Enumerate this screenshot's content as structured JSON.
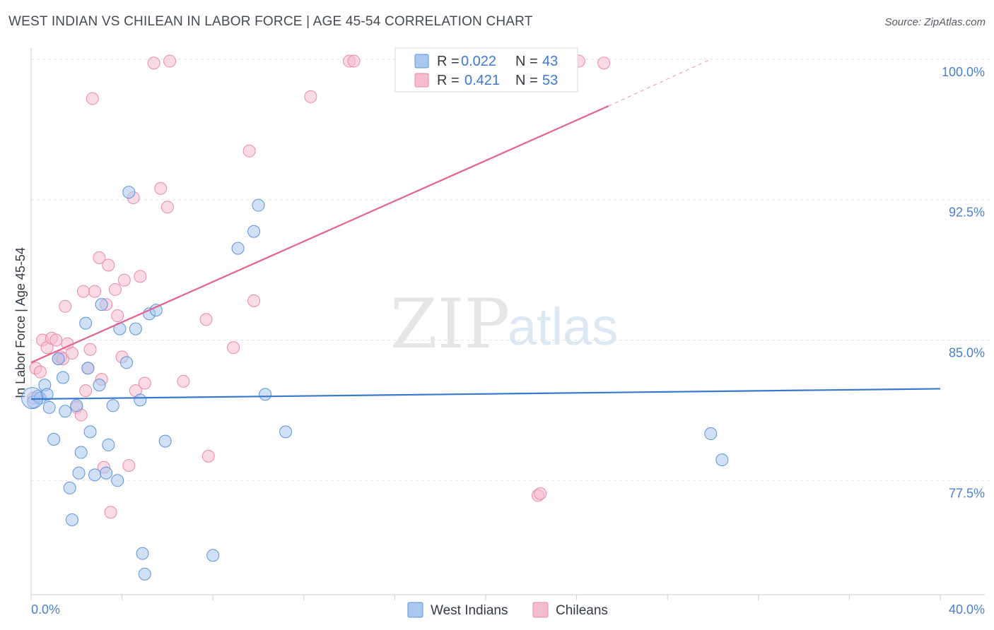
{
  "title": "WEST INDIAN VS CHILEAN IN LABOR FORCE | AGE 45-54 CORRELATION CHART",
  "source": "Source: ZipAtlas.com",
  "watermark": {
    "zip": "ZIP",
    "atlas": "atlas"
  },
  "colors": {
    "blue_fill": "#a9c8ef",
    "blue_stroke": "#5d93dc",
    "blue_line": "#3a78d0",
    "pink_fill": "#f5bcd0",
    "pink_stroke": "#e88aa8",
    "pink_line": "#e4638e",
    "grid": "#e3e3e3",
    "axis_text": "#4a7fd0"
  },
  "legend": {
    "rows": [
      {
        "r_label": "R =",
        "r_value": "0.022",
        "n_label": "N =",
        "n_value": "43"
      },
      {
        "r_label": "R =",
        "r_value": "0.421",
        "n_label": "N =",
        "n_value": "53"
      }
    ]
  },
  "chart_data": {
    "type": "scatter",
    "title": "WEST INDIAN VS CHILEAN IN LABOR FORCE | AGE 45-54 CORRELATION CHART",
    "xlabel": "",
    "ylabel": "In Labor Force | Age 45-54",
    "xlim": [
      0,
      40
    ],
    "ylim": [
      71.4,
      100.6
    ],
    "x_tick_labels": [
      "0.0%",
      "40.0%"
    ],
    "y_ticks": [
      77.5,
      85.0,
      92.5,
      100.0
    ],
    "y_tick_labels": [
      "77.5%",
      "85.0%",
      "92.5%",
      "100.0%"
    ],
    "legend_position": "top-center",
    "series": [
      {
        "name": "West Indians",
        "R": 0.022,
        "N": 43,
        "trend": {
          "x": [
            0,
            40
          ],
          "y": [
            81.85,
            82.4
          ]
        },
        "points": [
          [
            0.1,
            81.7
          ],
          [
            0.3,
            82.0
          ],
          [
            0.4,
            81.9
          ],
          [
            0.6,
            82.6
          ],
          [
            0.7,
            82.1
          ],
          [
            0.8,
            81.4
          ],
          [
            1.0,
            79.7
          ],
          [
            1.2,
            84.0
          ],
          [
            1.4,
            83.0
          ],
          [
            1.5,
            81.2
          ],
          [
            1.7,
            77.1
          ],
          [
            1.8,
            75.4
          ],
          [
            2.0,
            81.5
          ],
          [
            2.1,
            77.9
          ],
          [
            2.2,
            79.0
          ],
          [
            2.4,
            85.9
          ],
          [
            2.5,
            83.5
          ],
          [
            2.6,
            80.1
          ],
          [
            2.8,
            77.8
          ],
          [
            3.0,
            82.6
          ],
          [
            3.1,
            86.9
          ],
          [
            3.3,
            77.9
          ],
          [
            3.4,
            79.4
          ],
          [
            3.6,
            81.5
          ],
          [
            3.8,
            77.5
          ],
          [
            3.9,
            85.6
          ],
          [
            4.2,
            83.8
          ],
          [
            4.3,
            92.9
          ],
          [
            4.6,
            85.6
          ],
          [
            4.8,
            81.8
          ],
          [
            4.9,
            73.6
          ],
          [
            5.0,
            72.5
          ],
          [
            5.2,
            86.4
          ],
          [
            5.5,
            86.6
          ],
          [
            5.9,
            79.6
          ],
          [
            8.0,
            73.5
          ],
          [
            9.1,
            89.9
          ],
          [
            10.0,
            92.2
          ],
          [
            9.8,
            90.8
          ],
          [
            10.3,
            82.1
          ],
          [
            11.2,
            80.1
          ],
          [
            29.9,
            80.0
          ],
          [
            30.4,
            78.6
          ]
        ]
      },
      {
        "name": "Chileans",
        "R": 0.421,
        "N": 53,
        "trend": {
          "x": [
            0.0,
            25.4
          ],
          "y": [
            83.8,
            97.5
          ]
        },
        "trend_dashed": {
          "x": [
            25.4,
            29.9
          ],
          "y": [
            97.5,
            100.0
          ]
        },
        "points": [
          [
            0.1,
            81.9
          ],
          [
            0.2,
            83.5
          ],
          [
            0.4,
            83.3
          ],
          [
            0.5,
            85.0
          ],
          [
            0.7,
            84.6
          ],
          [
            0.9,
            85.1
          ],
          [
            1.1,
            85.0
          ],
          [
            1.2,
            84.0
          ],
          [
            1.3,
            84.1
          ],
          [
            1.4,
            84.0
          ],
          [
            1.5,
            86.8
          ],
          [
            1.6,
            84.8
          ],
          [
            1.8,
            84.3
          ],
          [
            2.0,
            81.4
          ],
          [
            2.2,
            81.0
          ],
          [
            2.3,
            87.6
          ],
          [
            2.4,
            82.3
          ],
          [
            2.5,
            83.5
          ],
          [
            2.6,
            84.5
          ],
          [
            2.7,
            97.9
          ],
          [
            2.8,
            87.6
          ],
          [
            3.0,
            89.4
          ],
          [
            3.1,
            82.9
          ],
          [
            3.2,
            78.2
          ],
          [
            3.3,
            86.9
          ],
          [
            3.4,
            89.0
          ],
          [
            3.5,
            75.8
          ],
          [
            3.7,
            87.7
          ],
          [
            3.8,
            86.3
          ],
          [
            4.0,
            84.1
          ],
          [
            4.1,
            88.2
          ],
          [
            4.3,
            78.3
          ],
          [
            4.5,
            92.6
          ],
          [
            4.6,
            82.3
          ],
          [
            4.8,
            88.4
          ],
          [
            5.0,
            82.7
          ],
          [
            5.4,
            99.8
          ],
          [
            5.7,
            93.1
          ],
          [
            6.0,
            92.1
          ],
          [
            6.1,
            99.9
          ],
          [
            6.7,
            82.8
          ],
          [
            7.7,
            86.1
          ],
          [
            7.8,
            78.8
          ],
          [
            8.9,
            84.6
          ],
          [
            9.6,
            95.1
          ],
          [
            9.8,
            87.1
          ],
          [
            12.3,
            98.0
          ],
          [
            14.0,
            99.9
          ],
          [
            14.2,
            99.9
          ],
          [
            22.3,
            76.7
          ],
          [
            24.1,
            99.9
          ],
          [
            22.4,
            76.8
          ],
          [
            25.2,
            99.8
          ]
        ]
      }
    ]
  },
  "bottom_legend": {
    "items": [
      {
        "label": "West Indians"
      },
      {
        "label": "Chileans"
      }
    ]
  }
}
